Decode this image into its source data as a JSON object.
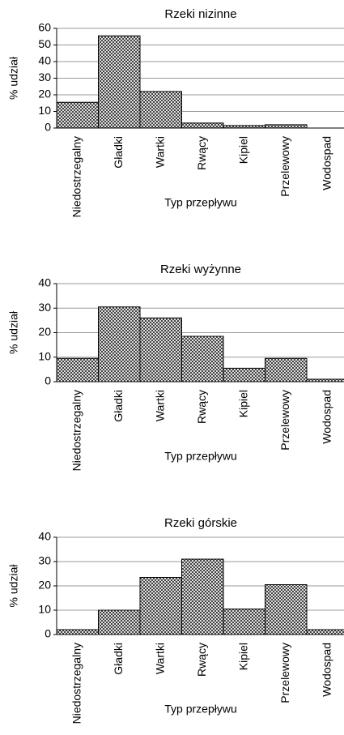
{
  "chart_data": [
    {
      "type": "bar",
      "title": "Rzeki nizinne",
      "x_label": "Typ przepływu",
      "y_label": "% udział",
      "categories": [
        "Niedostrzegalny",
        "Gładki",
        "Wartki",
        "Rwący",
        "Kipiel",
        "Przelewowy",
        "Wodospad"
      ],
      "values": [
        15.5,
        55.5,
        22,
        3,
        1.5,
        2,
        0
      ],
      "color": "#000000",
      "ylim": [
        0,
        60
      ],
      "yticks": [
        0,
        10,
        20,
        30,
        40,
        50,
        60
      ],
      "grid": true
    },
    {
      "type": "bar",
      "title": "Rzeki wyżynne",
      "x_label": "Typ przepływu",
      "y_label": "% udział",
      "categories": [
        "Niedostrzegalny",
        "Gładki",
        "Wartki",
        "Rwący",
        "Kipiel",
        "Przelewowy",
        "Wodospad"
      ],
      "values": [
        9.5,
        30.5,
        26,
        18.5,
        5.5,
        9.5,
        1
      ],
      "color": "#000000",
      "ylim": [
        0,
        40
      ],
      "yticks": [
        0,
        10,
        20,
        30,
        40
      ],
      "grid": true
    },
    {
      "type": "bar",
      "title": "Rzeki górskie",
      "x_label": "Typ przepływu",
      "y_label": "% udział",
      "categories": [
        "Niedostrzegalny",
        "Gładki",
        "Wartki",
        "Rwący",
        "Kipiel",
        "Przelewowy",
        "Wodospad"
      ],
      "values": [
        2,
        10,
        23.5,
        31,
        10.5,
        20.5,
        2
      ],
      "color": "#000000",
      "ylim": [
        0,
        40
      ],
      "yticks": [
        0,
        10,
        20,
        30,
        40
      ],
      "grid": true
    }
  ]
}
